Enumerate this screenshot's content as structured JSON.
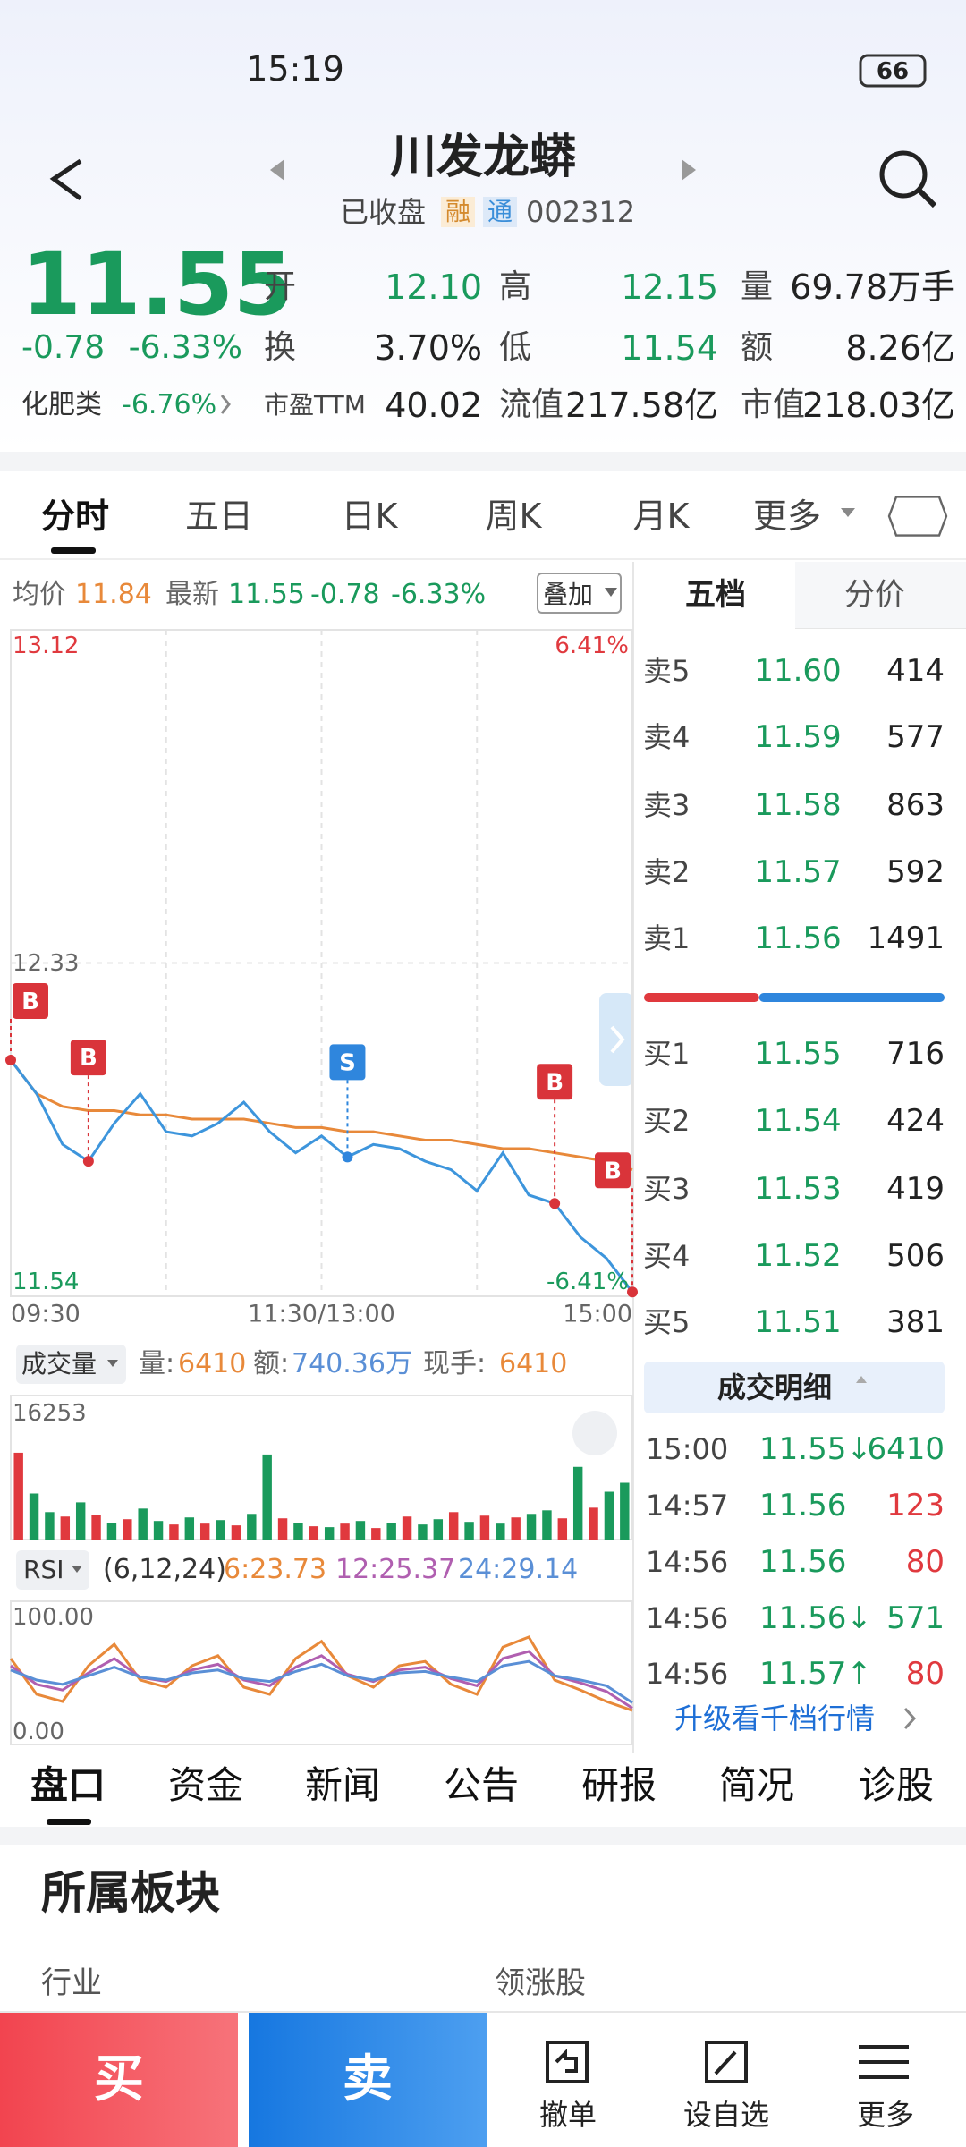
{
  "status": {
    "time": "15:19",
    "battery": "66"
  },
  "header": {
    "title": "川发龙蟒",
    "state": "已收盘",
    "badges": [
      "融",
      "通"
    ],
    "code": "002312"
  },
  "quote": {
    "price": "11.55",
    "change": "-0.78",
    "pct": "-6.33%",
    "sector": "化肥类",
    "sector_pct": "-6.76%",
    "stats": [
      {
        "label": "开",
        "value": "12.10"
      },
      {
        "label": "高",
        "value": "12.15"
      },
      {
        "label": "量",
        "value": "69.78万手"
      },
      {
        "label": "换",
        "value": "3.70%"
      },
      {
        "label": "低",
        "value": "11.54"
      },
      {
        "label": "额",
        "value": "8.26亿"
      },
      {
        "label": "市盈TTM",
        "value": "40.02"
      },
      {
        "label": "流值",
        "value": "217.58亿"
      },
      {
        "label": "市值",
        "value": "218.03亿"
      }
    ]
  },
  "tabs": [
    "分时",
    "五日",
    "日K",
    "周K",
    "月K",
    "更多"
  ],
  "info": {
    "avg_label": "均价",
    "avg": "11.84",
    "last_label": "最新",
    "last": "11.55",
    "change": "-0.78",
    "pct": "-6.33%",
    "overlay": "叠加"
  },
  "chart_data": [
    {
      "type": "line",
      "xticks": [
        "09:30",
        "11:30/13:00",
        "15:00"
      ],
      "ylim": [
        11.54,
        13.12
      ],
      "yticks": [
        13.12,
        12.33,
        11.54
      ],
      "y2lim": [
        -6.41,
        6.41
      ],
      "y2ticks": [
        {
          "value": 6.41,
          "label": "6.41%"
        },
        {
          "value": -6.41,
          "label": "-6.41%"
        }
      ],
      "grid": true,
      "series": [
        {
          "color": "#3d95dc",
          "values": [
            12.1,
            12.02,
            11.9,
            11.86,
            11.95,
            12.02,
            11.93,
            11.92,
            11.95,
            12.0,
            11.93,
            11.88,
            11.92,
            11.87,
            11.9,
            11.89,
            11.86,
            11.84,
            11.79,
            11.88,
            11.78,
            11.76,
            11.68,
            11.63,
            11.55
          ]
        },
        {
          "color": "#e8893a",
          "values": [
            12.1,
            12.02,
            11.99,
            11.98,
            11.98,
            11.97,
            11.97,
            11.96,
            11.96,
            11.96,
            11.95,
            11.94,
            11.94,
            11.93,
            11.93,
            11.92,
            11.91,
            11.91,
            11.9,
            11.89,
            11.89,
            11.88,
            11.87,
            11.86,
            11.84
          ]
        }
      ],
      "annotations": [
        "B",
        "B",
        "S",
        "B",
        "B"
      ]
    },
    {
      "type": "bar",
      "title": "成交量",
      "legend": [
        {
          "label": "量:",
          "value": "6410",
          "color": "#e8893a"
        },
        {
          "label": "额:",
          "value": "740.36万",
          "color": "#5a8fd6"
        },
        {
          "label": "现手:",
          "value": "6410",
          "color": "#e8893a"
        }
      ],
      "ylim": [
        0,
        16253
      ],
      "yticks": [
        16253
      ],
      "values": [
        9800,
        5200,
        3100,
        2600,
        4200,
        2800,
        1900,
        2300,
        3500,
        2100,
        1700,
        2500,
        1800,
        2200,
        1600,
        2900,
        9600,
        2400,
        1900,
        1500,
        1400,
        1800,
        2100,
        1300,
        1900,
        2600,
        1700,
        2300,
        3100,
        2000,
        2700,
        1800,
        2500,
        2900,
        3300,
        2400,
        8200,
        3600,
        5400,
        6410
      ],
      "colors": [
        "#e0393e",
        "#1a9a5c",
        "#1a9a5c",
        "#e0393e",
        "#1a9a5c",
        "#e0393e",
        "#1a9a5c",
        "#e0393e",
        "#1a9a5c",
        "#1a9a5c",
        "#e0393e",
        "#1a9a5c",
        "#e0393e",
        "#1a9a5c",
        "#e0393e",
        "#1a9a5c",
        "#1a9a5c",
        "#e0393e",
        "#1a9a5c",
        "#e0393e",
        "#1a9a5c",
        "#e0393e",
        "#1a9a5c",
        "#e0393e",
        "#1a9a5c",
        "#e0393e",
        "#1a9a5c",
        "#1a9a5c",
        "#e0393e",
        "#1a9a5c",
        "#e0393e",
        "#1a9a5c",
        "#e0393e",
        "#1a9a5c",
        "#1a9a5c",
        "#e0393e",
        "#1a9a5c",
        "#e0393e",
        "#1a9a5c",
        "#1a9a5c"
      ]
    },
    {
      "type": "line",
      "title": "RSI",
      "params": "(6,12,24)",
      "ylim": [
        0,
        100
      ],
      "yticks": [
        {
          "value": 100,
          "label": "100.00"
        },
        {
          "value": 0,
          "label": "0.00"
        }
      ],
      "series": [
        {
          "label": "6:23.73",
          "color": "#e8893a",
          "values": [
            60,
            35,
            30,
            55,
            70,
            45,
            40,
            55,
            62,
            40,
            35,
            60,
            72,
            48,
            40,
            55,
            58,
            42,
            35,
            68,
            75,
            45,
            38,
            30,
            23.73
          ]
        },
        {
          "label": "12:25.37",
          "color": "#b05fb0",
          "values": [
            55,
            42,
            38,
            50,
            60,
            47,
            44,
            52,
            56,
            45,
            41,
            54,
            62,
            49,
            44,
            52,
            54,
            46,
            41,
            60,
            65,
            48,
            43,
            37,
            25.37
          ]
        },
        {
          "label": "24:29.14",
          "color": "#5a8fd6",
          "values": [
            52,
            45,
            42,
            48,
            54,
            47,
            45,
            50,
            52,
            46,
            44,
            51,
            56,
            48,
            45,
            50,
            51,
            47,
            44,
            55,
            58,
            48,
            45,
            41,
            29.14
          ]
        }
      ]
    }
  ],
  "side_tabs": [
    "五档",
    "分价"
  ],
  "order_book": {
    "sell": [
      {
        "label": "卖5",
        "price": "11.60",
        "volume": "414"
      },
      {
        "label": "卖4",
        "price": "11.59",
        "volume": "577"
      },
      {
        "label": "卖3",
        "price": "11.58",
        "volume": "863"
      },
      {
        "label": "卖2",
        "price": "11.57",
        "volume": "592"
      },
      {
        "label": "卖1",
        "price": "11.56",
        "volume": "1491"
      }
    ],
    "buy": [
      {
        "label": "买1",
        "price": "11.55",
        "volume": "716"
      },
      {
        "label": "买2",
        "price": "11.54",
        "volume": "424"
      },
      {
        "label": "买3",
        "price": "11.53",
        "volume": "419"
      },
      {
        "label": "买4",
        "price": "11.52",
        "volume": "506"
      },
      {
        "label": "买5",
        "price": "11.51",
        "volume": "381"
      }
    ]
  },
  "trades": {
    "title": "成交明细",
    "rows": [
      {
        "time": "15:00",
        "price": "11.55↓",
        "volume": "6410",
        "vol_color": "#1a9a5c"
      },
      {
        "time": "14:57",
        "price": "11.56",
        "volume": "123",
        "vol_color": "#e0393e"
      },
      {
        "time": "14:56",
        "price": "11.56",
        "volume": "80",
        "vol_color": "#e0393e"
      },
      {
        "time": "14:56",
        "price": "11.56↓",
        "volume": "571",
        "vol_color": "#1a9a5c"
      },
      {
        "time": "14:56",
        "price": "11.57↑",
        "volume": "80",
        "vol_color": "#e0393e"
      }
    ],
    "more": "升级看千档行情"
  },
  "section_tabs": [
    "盘口",
    "资金",
    "新闻",
    "公告",
    "研报",
    "简况",
    "诊股"
  ],
  "section": {
    "title": "所属板块",
    "industry": "行业",
    "leader": "领涨股"
  },
  "actions": {
    "buy": "买",
    "sell": "卖",
    "items": [
      "撤单",
      "设自选",
      "更多"
    ]
  }
}
